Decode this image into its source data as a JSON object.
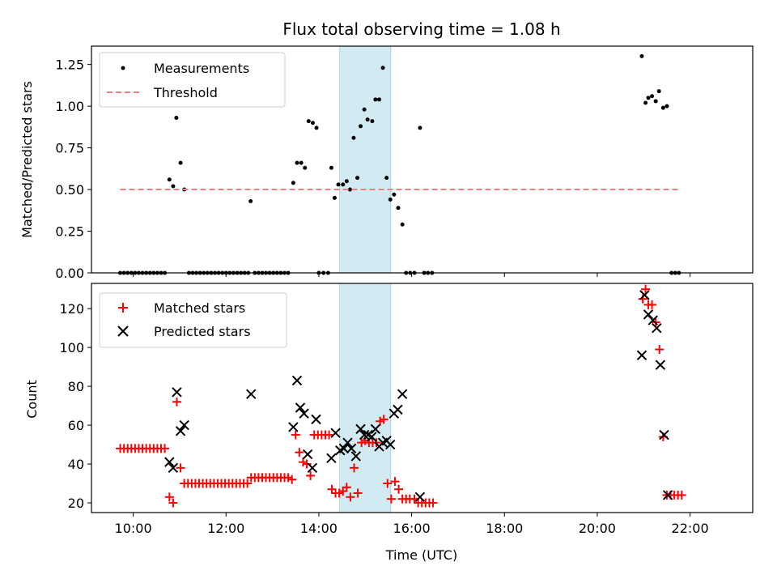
{
  "chart_data": [
    {
      "type": "scatter",
      "title": "Flux total observing time = 1.08 h",
      "ylabel": "Matched/Predicted stars",
      "xlabel": "",
      "ylim": [
        0,
        1.36
      ],
      "yticks": [
        0.0,
        0.25,
        0.5,
        0.75,
        1.0,
        1.25
      ],
      "ytick_labels": [
        "0.00",
        "0.25",
        "0.50",
        "0.75",
        "1.00",
        "1.25"
      ],
      "xlim": [
        9.1,
        23.35
      ],
      "xticks": [
        10,
        12,
        14,
        16,
        18,
        20,
        22
      ],
      "legend_position": "upper-left",
      "highlight_span": {
        "x": [
          14.45,
          15.55
        ],
        "color": "#add8e6"
      },
      "series": [
        {
          "name": "Measurements",
          "marker": "dot",
          "color": "#000000",
          "points": [
            [
              9.72,
              0
            ],
            [
              9.8,
              0
            ],
            [
              9.88,
              0
            ],
            [
              9.96,
              0
            ],
            [
              10.04,
              0
            ],
            [
              10.12,
              0
            ],
            [
              10.2,
              0
            ],
            [
              10.28,
              0
            ],
            [
              10.36,
              0
            ],
            [
              10.44,
              0
            ],
            [
              10.52,
              0
            ],
            [
              10.6,
              0
            ],
            [
              10.68,
              0
            ],
            [
              10.78,
              0.56
            ],
            [
              10.86,
              0.52
            ],
            [
              10.93,
              0.93
            ],
            [
              11.02,
              0.66
            ],
            [
              11.1,
              0.5
            ],
            [
              11.2,
              0
            ],
            [
              11.28,
              0
            ],
            [
              11.36,
              0
            ],
            [
              11.44,
              0
            ],
            [
              11.52,
              0
            ],
            [
              11.6,
              0
            ],
            [
              11.68,
              0
            ],
            [
              11.76,
              0
            ],
            [
              11.84,
              0
            ],
            [
              11.92,
              0
            ],
            [
              12.0,
              0
            ],
            [
              12.08,
              0
            ],
            [
              12.16,
              0
            ],
            [
              12.24,
              0
            ],
            [
              12.32,
              0
            ],
            [
              12.4,
              0
            ],
            [
              12.48,
              0
            ],
            [
              12.53,
              0.43
            ],
            [
              12.62,
              0
            ],
            [
              12.7,
              0
            ],
            [
              12.78,
              0
            ],
            [
              12.86,
              0
            ],
            [
              12.94,
              0
            ],
            [
              13.02,
              0
            ],
            [
              13.1,
              0
            ],
            [
              13.18,
              0
            ],
            [
              13.26,
              0
            ],
            [
              13.34,
              0
            ],
            [
              13.45,
              0.54
            ],
            [
              13.53,
              0.66
            ],
            [
              13.62,
              0.66
            ],
            [
              13.7,
              0.63
            ],
            [
              13.78,
              0.91
            ],
            [
              13.87,
              0.9
            ],
            [
              13.95,
              0.87
            ],
            [
              14.0,
              0
            ],
            [
              14.1,
              0
            ],
            [
              14.2,
              0
            ],
            [
              14.27,
              0.63
            ],
            [
              14.34,
              0.45
            ],
            [
              14.42,
              0.53
            ],
            [
              14.52,
              0.53
            ],
            [
              14.6,
              0.55
            ],
            [
              14.67,
              0.5
            ],
            [
              14.75,
              0.81
            ],
            [
              14.83,
              0.57
            ],
            [
              14.9,
              0.88
            ],
            [
              14.98,
              0.98
            ],
            [
              15.05,
              0.92
            ],
            [
              15.15,
              0.91
            ],
            [
              15.22,
              1.04
            ],
            [
              15.3,
              1.04
            ],
            [
              15.38,
              1.23
            ],
            [
              15.46,
              0.57
            ],
            [
              15.54,
              0.44
            ],
            [
              15.62,
              0.47
            ],
            [
              15.71,
              0.39
            ],
            [
              15.8,
              0.29
            ],
            [
              15.88,
              0
            ],
            [
              15.97,
              0
            ],
            [
              16.06,
              0
            ],
            [
              16.18,
              0.87
            ],
            [
              16.27,
              0
            ],
            [
              16.35,
              0
            ],
            [
              16.44,
              0
            ],
            [
              20.96,
              1.3
            ],
            [
              21.04,
              1.02
            ],
            [
              21.1,
              1.05
            ],
            [
              21.18,
              1.06
            ],
            [
              21.26,
              1.03
            ],
            [
              21.33,
              1.09
            ],
            [
              21.42,
              0.99
            ],
            [
              21.5,
              1.0
            ],
            [
              21.6,
              0
            ],
            [
              21.68,
              0
            ],
            [
              21.76,
              0
            ]
          ]
        },
        {
          "name": "Threshold",
          "marker": "dashed-line",
          "color": "#f08080",
          "points": [
            [
              9.72,
              0.5
            ],
            [
              21.8,
              0.5
            ]
          ]
        }
      ]
    },
    {
      "type": "scatter",
      "title": "",
      "ylabel": "Count",
      "xlabel": "Time (UTC)",
      "ylim": [
        15,
        133
      ],
      "yticks": [
        20,
        40,
        60,
        80,
        100,
        120
      ],
      "ytick_labels": [
        "20",
        "40",
        "60",
        "80",
        "100",
        "120"
      ],
      "xlim": [
        9.1,
        23.35
      ],
      "xticks": [
        10,
        12,
        14,
        16,
        18,
        20,
        22
      ],
      "xtick_labels": [
        "10:00",
        "12:00",
        "14:00",
        "16:00",
        "18:00",
        "20:00",
        "22:00"
      ],
      "legend_position": "upper-left",
      "highlight_span": {
        "x": [
          14.45,
          15.55
        ],
        "color": "#add8e6"
      },
      "series": [
        {
          "name": "Matched stars",
          "marker": "plus",
          "color": "#ff0000",
          "points": [
            [
              9.72,
              48
            ],
            [
              9.8,
              48
            ],
            [
              9.88,
              48
            ],
            [
              9.96,
              48
            ],
            [
              10.04,
              48
            ],
            [
              10.12,
              48
            ],
            [
              10.2,
              48
            ],
            [
              10.28,
              48
            ],
            [
              10.36,
              48
            ],
            [
              10.44,
              48
            ],
            [
              10.52,
              48
            ],
            [
              10.6,
              48
            ],
            [
              10.68,
              48
            ],
            [
              10.78,
              23
            ],
            [
              10.86,
              20
            ],
            [
              10.94,
              72
            ],
            [
              11.02,
              38
            ],
            [
              11.1,
              30
            ],
            [
              11.18,
              30
            ],
            [
              11.26,
              30
            ],
            [
              11.34,
              30
            ],
            [
              11.42,
              30
            ],
            [
              11.5,
              30
            ],
            [
              11.58,
              30
            ],
            [
              11.66,
              30
            ],
            [
              11.74,
              30
            ],
            [
              11.82,
              30
            ],
            [
              11.9,
              30
            ],
            [
              11.98,
              30
            ],
            [
              12.06,
              30
            ],
            [
              12.14,
              30
            ],
            [
              12.22,
              30
            ],
            [
              12.3,
              30
            ],
            [
              12.38,
              30
            ],
            [
              12.46,
              30
            ],
            [
              12.54,
              33
            ],
            [
              12.62,
              33
            ],
            [
              12.7,
              33
            ],
            [
              12.78,
              33
            ],
            [
              12.86,
              33
            ],
            [
              12.94,
              33
            ],
            [
              13.02,
              33
            ],
            [
              13.1,
              33
            ],
            [
              13.18,
              33
            ],
            [
              13.26,
              33
            ],
            [
              13.34,
              33
            ],
            [
              13.42,
              32
            ],
            [
              13.5,
              55
            ],
            [
              13.58,
              46
            ],
            [
              13.66,
              41
            ],
            [
              13.74,
              40
            ],
            [
              13.82,
              34
            ],
            [
              13.9,
              55
            ],
            [
              13.98,
              55
            ],
            [
              14.06,
              55
            ],
            [
              14.14,
              55
            ],
            [
              14.22,
              55
            ],
            [
              14.28,
              27
            ],
            [
              14.36,
              25
            ],
            [
              14.44,
              25
            ],
            [
              14.52,
              26
            ],
            [
              14.6,
              28
            ],
            [
              14.68,
              23
            ],
            [
              14.76,
              38
            ],
            [
              14.84,
              25
            ],
            [
              14.92,
              51
            ],
            [
              15.0,
              52
            ],
            [
              15.08,
              51
            ],
            [
              15.16,
              51
            ],
            [
              15.24,
              51
            ],
            [
              15.32,
              62
            ],
            [
              15.4,
              63
            ],
            [
              15.48,
              30
            ],
            [
              15.56,
              22
            ],
            [
              15.64,
              31
            ],
            [
              15.72,
              27
            ],
            [
              15.8,
              22
            ],
            [
              15.88,
              22
            ],
            [
              15.96,
              22
            ],
            [
              16.06,
              22
            ],
            [
              16.14,
              20
            ],
            [
              16.22,
              20
            ],
            [
              16.3,
              20
            ],
            [
              16.38,
              20
            ],
            [
              16.46,
              20
            ],
            [
              20.98,
              125
            ],
            [
              21.04,
              130
            ],
            [
              21.1,
              122
            ],
            [
              21.18,
              122
            ],
            [
              21.26,
              113
            ],
            [
              21.34,
              99
            ],
            [
              21.42,
              54
            ],
            [
              21.5,
              24
            ],
            [
              21.58,
              24
            ],
            [
              21.66,
              24
            ],
            [
              21.74,
              24
            ],
            [
              21.82,
              24
            ]
          ]
        },
        {
          "name": "Predicted stars",
          "marker": "x",
          "color": "#000000",
          "points": [
            [
              10.78,
              41
            ],
            [
              10.86,
              38
            ],
            [
              10.94,
              77
            ],
            [
              11.02,
              57
            ],
            [
              11.1,
              60
            ],
            [
              12.54,
              76
            ],
            [
              13.45,
              59
            ],
            [
              13.53,
              83
            ],
            [
              13.6,
              69
            ],
            [
              13.68,
              66
            ],
            [
              13.76,
              45
            ],
            [
              13.86,
              38
            ],
            [
              13.94,
              63
            ],
            [
              14.27,
              43
            ],
            [
              14.36,
              56
            ],
            [
              14.46,
              47
            ],
            [
              14.54,
              48
            ],
            [
              14.62,
              51
            ],
            [
              14.7,
              48
            ],
            [
              14.8,
              44
            ],
            [
              14.9,
              58
            ],
            [
              14.98,
              55
            ],
            [
              15.06,
              55
            ],
            [
              15.14,
              54
            ],
            [
              15.22,
              58
            ],
            [
              15.3,
              49
            ],
            [
              15.38,
              51
            ],
            [
              15.46,
              52
            ],
            [
              15.54,
              50
            ],
            [
              15.62,
              66
            ],
            [
              15.7,
              68
            ],
            [
              15.8,
              76
            ],
            [
              16.18,
              23
            ],
            [
              20.96,
              96
            ],
            [
              21.02,
              127
            ],
            [
              21.1,
              117
            ],
            [
              21.2,
              114
            ],
            [
              21.28,
              110
            ],
            [
              21.36,
              91
            ],
            [
              21.44,
              55
            ],
            [
              21.52,
              24
            ]
          ]
        }
      ]
    }
  ]
}
